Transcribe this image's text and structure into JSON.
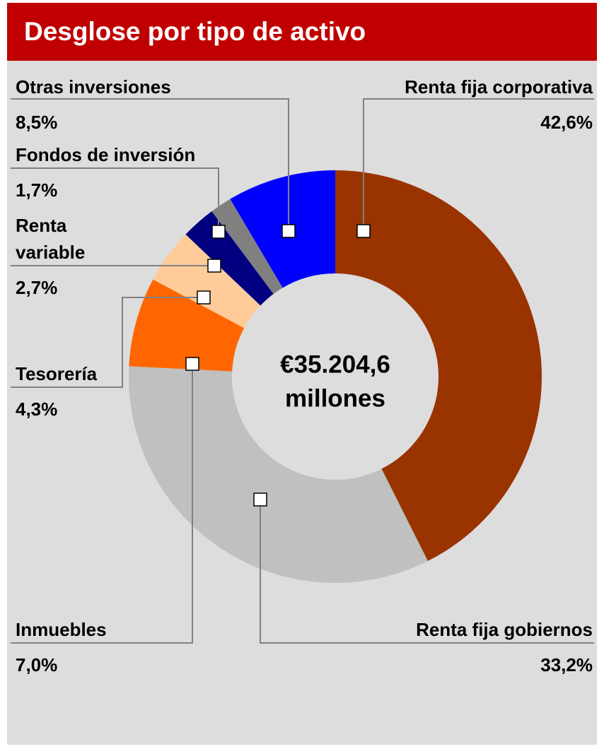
{
  "chart_data": {
    "type": "donut",
    "title": "Desglose por tipo de activo",
    "center_text": [
      "€35.204,6",
      "millones"
    ],
    "categories": [
      "Renta fija corporativa",
      "Renta fija gobiernos",
      "Inmuebles",
      "Tesorería",
      "Renta variable",
      "Fondos de inversión",
      "Otras inversiones"
    ],
    "values": [
      42.6,
      33.2,
      7.0,
      4.3,
      2.7,
      1.7,
      8.5
    ],
    "value_labels": [
      "42,6%",
      "33,2%",
      "7,0%",
      "4,3%",
      "2,7%",
      "1,7%",
      "8,5%"
    ],
    "colors": [
      "#993300",
      "#c0c0c0",
      "#ff6600",
      "#ffcc99",
      "#000080",
      "#808080",
      "#0000ff"
    ]
  }
}
